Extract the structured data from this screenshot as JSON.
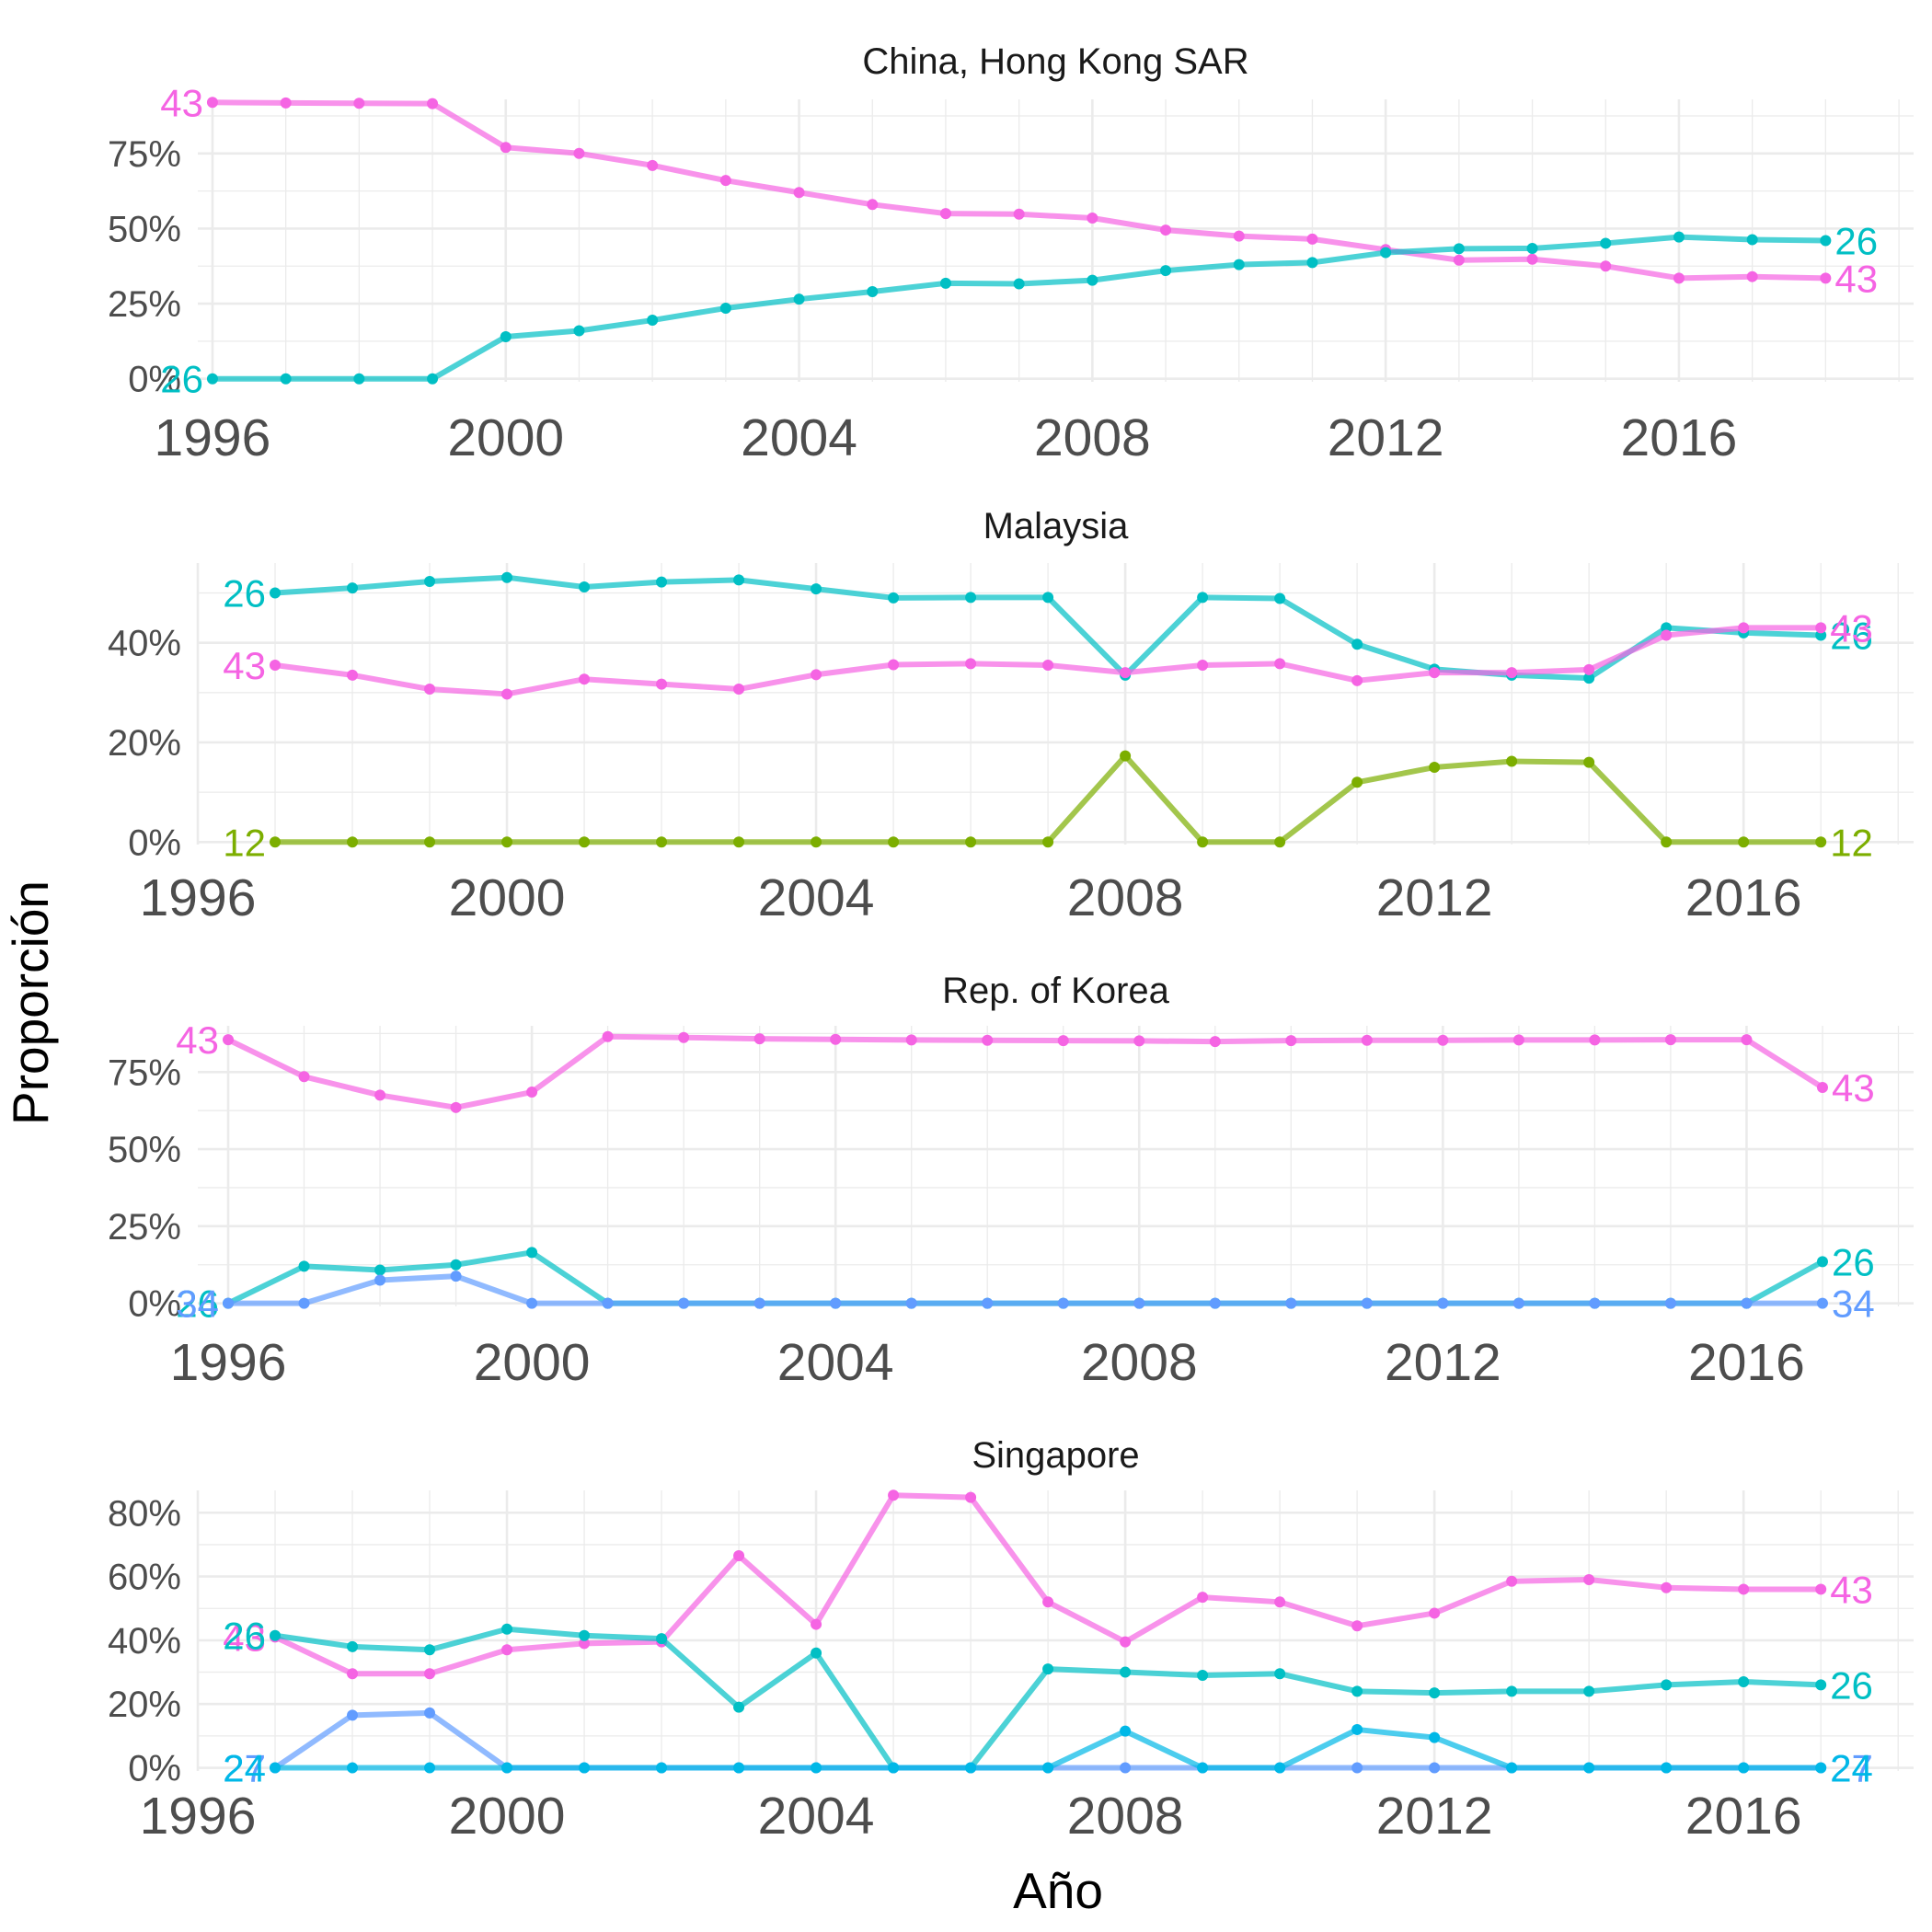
{
  "xlabel": "Año",
  "ylabel": "Proporción",
  "colors": {
    "26": "#00BFC4",
    "43": "#F564E3",
    "12": "#7CAE00",
    "34": "#619CFF",
    "27": "#619CFF",
    "24": "#00B8E7"
  },
  "chart_data": [
    {
      "type": "line",
      "title": "China, Hong Kong SAR",
      "x": [
        1996,
        1997,
        1998,
        1999,
        2000,
        2001,
        2002,
        2003,
        2004,
        2005,
        2006,
        2007,
        2008,
        2009,
        2010,
        2011,
        2012,
        2013,
        2014,
        2015,
        2016,
        2017,
        2018
      ],
      "xlim": [
        1995.8,
        2019.2
      ],
      "ylim": [
        -0.01,
        0.93
      ],
      "yticks": [
        0,
        0.25,
        0.5,
        0.75
      ],
      "ytick_labels": [
        "0%",
        "25%",
        "50%",
        "75%"
      ],
      "xticks": [
        1996,
        2000,
        2004,
        2008,
        2012,
        2016
      ],
      "xtick_labels": [
        "1996",
        "2000",
        "2004",
        "2008",
        "2012",
        "2016"
      ],
      "series": [
        {
          "name": "43",
          "values": [
            0.92,
            0.918,
            0.917,
            0.916,
            0.77,
            0.75,
            0.71,
            0.66,
            0.62,
            0.58,
            0.55,
            0.548,
            0.535,
            0.495,
            0.475,
            0.465,
            0.43,
            0.395,
            0.398,
            0.375,
            0.335,
            0.34,
            0.335
          ],
          "start_label": "43",
          "end_label": "43"
        },
        {
          "name": "26",
          "values": [
            0.0,
            0.0,
            0.0,
            0.0,
            0.14,
            0.16,
            0.195,
            0.235,
            0.265,
            0.29,
            0.318,
            0.316,
            0.328,
            0.36,
            0.38,
            0.387,
            0.42,
            0.433,
            0.434,
            0.451,
            0.472,
            0.463,
            0.46
          ],
          "start_label": "26",
          "end_label": "26"
        }
      ]
    },
    {
      "type": "line",
      "title": "Malaysia",
      "x": [
        1997,
        1998,
        1999,
        2000,
        2001,
        2002,
        2003,
        2004,
        2005,
        2006,
        2007,
        2008,
        2009,
        2010,
        2011,
        2012,
        2013,
        2014,
        2015,
        2016,
        2017
      ],
      "xlim": [
        1996.0,
        2018.2
      ],
      "ylim": [
        -0.005,
        0.56
      ],
      "yticks": [
        0,
        0.2,
        0.4
      ],
      "ytick_labels": [
        "0%",
        "20%",
        "40%"
      ],
      "xticks": [
        1996,
        2000,
        2004,
        2008,
        2012,
        2016
      ],
      "xtick_labels": [
        "1996",
        "2000",
        "2004",
        "2008",
        "2012",
        "2016"
      ],
      "series": [
        {
          "name": "26",
          "values": [
            0.5,
            0.51,
            0.523,
            0.531,
            0.512,
            0.522,
            0.526,
            0.508,
            0.49,
            0.491,
            0.491,
            0.335,
            0.491,
            0.489,
            0.397,
            0.347,
            0.335,
            0.329,
            0.43,
            0.42,
            0.415
          ],
          "start_label": "26",
          "end_label": "26"
        },
        {
          "name": "43",
          "values": [
            0.355,
            0.335,
            0.307,
            0.297,
            0.327,
            0.317,
            0.307,
            0.336,
            0.356,
            0.358,
            0.355,
            0.34,
            0.355,
            0.358,
            0.324,
            0.34,
            0.34,
            0.346,
            0.415,
            0.43,
            0.43
          ],
          "start_label": "43",
          "end_label": "43"
        },
        {
          "name": "12",
          "values": [
            0.0,
            0.0,
            0.0,
            0.0,
            0.0,
            0.0,
            0.0,
            0.0,
            0.0,
            0.0,
            0.0,
            0.173,
            0.0,
            0.0,
            0.12,
            0.15,
            0.162,
            0.16,
            0.0,
            0.0,
            0.0
          ],
          "start_label": "12",
          "end_label": "12"
        }
      ]
    },
    {
      "type": "line",
      "title": "Rep. of Korea",
      "x": [
        1996,
        1997,
        1998,
        1999,
        2000,
        2001,
        2002,
        2003,
        2004,
        2005,
        2006,
        2007,
        2008,
        2009,
        2010,
        2011,
        2012,
        2013,
        2014,
        2015,
        2016,
        2017
      ],
      "xlim": [
        1995.6,
        2018.2
      ],
      "ylim": [
        -0.01,
        0.9
      ],
      "yticks": [
        0,
        0.25,
        0.5,
        0.75
      ],
      "ytick_labels": [
        "0%",
        "25%",
        "50%",
        "75%"
      ],
      "xticks": [
        1996,
        2000,
        2004,
        2008,
        2012,
        2016
      ],
      "xtick_labels": [
        "1996",
        "2000",
        "2004",
        "2008",
        "2012",
        "2016"
      ],
      "series": [
        {
          "name": "43",
          "values": [
            0.855,
            0.735,
            0.675,
            0.635,
            0.685,
            0.865,
            0.862,
            0.858,
            0.856,
            0.854,
            0.853,
            0.852,
            0.851,
            0.849,
            0.852,
            0.853,
            0.853,
            0.854,
            0.854,
            0.855,
            0.855,
            0.7
          ],
          "start_label": "43",
          "end_label": "43"
        },
        {
          "name": "26",
          "values": [
            0.0,
            0.12,
            0.108,
            0.125,
            0.165,
            0.0,
            0.0,
            0.0,
            0.0,
            0.0,
            0.0,
            0.0,
            0.0,
            0.0,
            0.0,
            0.0,
            0.0,
            0.0,
            0.0,
            0.0,
            0.0,
            0.135
          ],
          "start_label": "26",
          "end_label": "26"
        },
        {
          "name": "34",
          "values": [
            0.0,
            0.0,
            0.075,
            0.088,
            0.0,
            0.0,
            0.0,
            0.0,
            0.0,
            0.0,
            0.0,
            0.0,
            0.0,
            0.0,
            0.0,
            0.0,
            0.0,
            0.0,
            0.0,
            0.0,
            0.0,
            0.0
          ],
          "start_label": "34",
          "end_label": "34"
        }
      ]
    },
    {
      "type": "line",
      "title": "Singapore",
      "x": [
        1997,
        1998,
        1999,
        2000,
        2001,
        2002,
        2003,
        2004,
        2005,
        2006,
        2007,
        2008,
        2009,
        2010,
        2011,
        2012,
        2013,
        2014,
        2015,
        2016,
        2017
      ],
      "xlim": [
        1996.0,
        2018.2
      ],
      "ylim": [
        -0.01,
        0.87
      ],
      "yticks": [
        0,
        0.2,
        0.4,
        0.6,
        0.8
      ],
      "ytick_labels": [
        "0%",
        "20%",
        "40%",
        "60%",
        "80%"
      ],
      "xticks": [
        1996,
        2000,
        2004,
        2008,
        2012,
        2016
      ],
      "xtick_labels": [
        "1996",
        "2000",
        "2004",
        "2008",
        "2012",
        "2016"
      ],
      "series": [
        {
          "name": "43",
          "values": [
            0.41,
            0.295,
            0.295,
            0.37,
            0.39,
            0.395,
            0.665,
            0.45,
            0.855,
            0.848,
            0.52,
            0.395,
            0.535,
            0.52,
            0.445,
            0.485,
            0.585,
            0.59,
            0.565,
            0.56,
            0.56
          ],
          "start_label": "43",
          "end_label": "43"
        },
        {
          "name": "26",
          "values": [
            0.415,
            0.38,
            0.37,
            0.435,
            0.415,
            0.405,
            0.19,
            0.36,
            0.0,
            0.0,
            0.31,
            0.3,
            0.29,
            0.295,
            0.24,
            0.235,
            0.24,
            0.24,
            0.26,
            0.27,
            0.26
          ],
          "start_label": "26",
          "end_label": "26"
        },
        {
          "name": "27",
          "values": [
            0.0,
            0.165,
            0.172,
            0.0,
            0.0,
            0.0,
            0.0,
            0.0,
            0.0,
            0.0,
            0.0,
            0.0,
            0.0,
            0.0,
            0.0,
            0.0,
            0.0,
            0.0,
            0.0,
            0.0,
            0.0
          ],
          "start_label": "27",
          "end_label": "27"
        },
        {
          "name": "24",
          "values": [
            0.0,
            0.0,
            0.0,
            0.0,
            0.0,
            0.0,
            0.0,
            0.0,
            0.0,
            0.0,
            0.0,
            0.115,
            0.0,
            0.0,
            0.12,
            0.095,
            0.0,
            0.0,
            0.0,
            0.0,
            0.0
          ],
          "start_label": "24",
          "end_label": "24"
        }
      ]
    }
  ]
}
